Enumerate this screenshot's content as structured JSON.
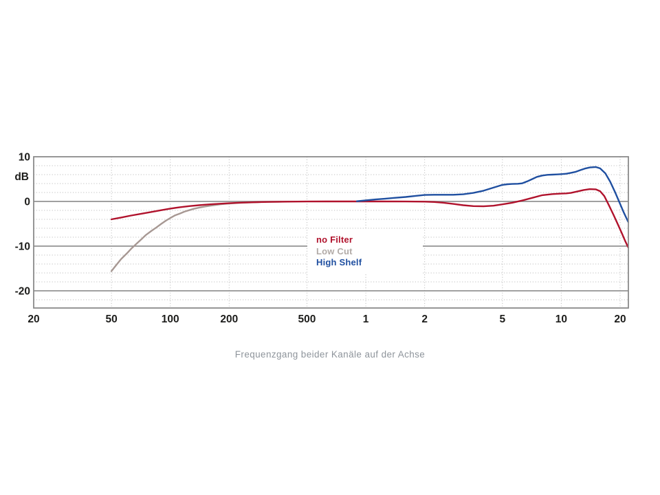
{
  "caption": "Frequenzgang beider Kanäle auf der Achse",
  "legend": {
    "position": "inside-center",
    "items": [
      {
        "label": "no Filter",
        "color": "#b0122c"
      },
      {
        "label": "Low Cut",
        "color": "#b2aba7"
      },
      {
        "label": "High Shelf",
        "color": "#1f4fa0"
      }
    ]
  },
  "chart_data": {
    "type": "line",
    "title": "",
    "xlabel": "",
    "ylabel": "dB",
    "xscale": "log",
    "xlim_hz": [
      20,
      22000
    ],
    "ylim_db": [
      -23.8,
      10
    ],
    "grid": "horizontal solid every 10 dB, dotted minors every 2 dB, dotted verticals at labeled frequencies",
    "x_ticks": [
      {
        "label": "20",
        "hz": 20
      },
      {
        "label": "50",
        "hz": 50
      },
      {
        "label": "100",
        "hz": 100
      },
      {
        "label": "200",
        "hz": 200
      },
      {
        "label": "500",
        "hz": 500
      },
      {
        "label": "1",
        "hz": 1000
      },
      {
        "label": "2",
        "hz": 2000
      },
      {
        "label": "5",
        "hz": 5000
      },
      {
        "label": "10",
        "hz": 10000
      },
      {
        "label": "20",
        "hz": 20000
      }
    ],
    "y_ticks": [
      {
        "label": "10",
        "db": 10
      },
      {
        "label": "0",
        "db": 0
      },
      {
        "label": "-10",
        "db": -10
      },
      {
        "label": "-20",
        "db": -20
      }
    ],
    "series": [
      {
        "name": "Low Cut",
        "color": "#a79893",
        "points": [
          [
            50,
            -15.6
          ],
          [
            53,
            -14.2
          ],
          [
            56,
            -12.9
          ],
          [
            60,
            -11.6
          ],
          [
            63,
            -10.6
          ],
          [
            67,
            -9.5
          ],
          [
            71,
            -8.5
          ],
          [
            75,
            -7.5
          ],
          [
            80,
            -6.6
          ],
          [
            85,
            -5.8
          ],
          [
            90,
            -5.0
          ],
          [
            95,
            -4.3
          ],
          [
            100,
            -3.7
          ],
          [
            106,
            -3.1
          ],
          [
            112,
            -2.7
          ],
          [
            118,
            -2.3
          ],
          [
            125,
            -1.95
          ],
          [
            132,
            -1.65
          ],
          [
            140,
            -1.4
          ],
          [
            150,
            -1.15
          ],
          [
            160,
            -0.95
          ],
          [
            170,
            -0.8
          ],
          [
            180,
            -0.65
          ],
          [
            190,
            -0.55
          ],
          [
            200,
            -0.47
          ],
          [
            224,
            -0.33
          ],
          [
            250,
            -0.24
          ],
          [
            280,
            -0.16
          ],
          [
            315,
            -0.1
          ],
          [
            355,
            -0.06
          ],
          [
            400,
            -0.03
          ]
        ]
      },
      {
        "name": "no Filter",
        "color": "#b0122c",
        "points": [
          [
            50,
            -4.0
          ],
          [
            56,
            -3.6
          ],
          [
            63,
            -3.15
          ],
          [
            71,
            -2.75
          ],
          [
            80,
            -2.35
          ],
          [
            90,
            -1.95
          ],
          [
            100,
            -1.6
          ],
          [
            112,
            -1.3
          ],
          [
            125,
            -1.05
          ],
          [
            140,
            -0.85
          ],
          [
            160,
            -0.65
          ],
          [
            180,
            -0.5
          ],
          [
            200,
            -0.4
          ],
          [
            224,
            -0.3
          ],
          [
            250,
            -0.22
          ],
          [
            280,
            -0.16
          ],
          [
            315,
            -0.11
          ],
          [
            400,
            -0.05
          ],
          [
            500,
            -0.02
          ],
          [
            630,
            0
          ],
          [
            800,
            0
          ],
          [
            1000,
            0
          ],
          [
            1250,
            0
          ],
          [
            1600,
            -0.02
          ],
          [
            2000,
            -0.05
          ],
          [
            2240,
            -0.12
          ],
          [
            2500,
            -0.3
          ],
          [
            2800,
            -0.55
          ],
          [
            3150,
            -0.85
          ],
          [
            3550,
            -1.05
          ],
          [
            4000,
            -1.1
          ],
          [
            4500,
            -0.95
          ],
          [
            5000,
            -0.65
          ],
          [
            5600,
            -0.3
          ],
          [
            6300,
            0.2
          ],
          [
            7100,
            0.8
          ],
          [
            8000,
            1.4
          ],
          [
            9000,
            1.65
          ],
          [
            10000,
            1.75
          ],
          [
            10600,
            1.8
          ],
          [
            11200,
            1.9
          ],
          [
            12000,
            2.2
          ],
          [
            13000,
            2.55
          ],
          [
            14000,
            2.75
          ],
          [
            15000,
            2.7
          ],
          [
            15800,
            2.3
          ],
          [
            16600,
            1.2
          ],
          [
            17500,
            -0.8
          ],
          [
            18500,
            -3.0
          ],
          [
            19500,
            -5.2
          ],
          [
            20500,
            -7.3
          ],
          [
            21200,
            -8.8
          ],
          [
            22000,
            -10.3
          ]
        ]
      },
      {
        "name": "High Shelf",
        "color": "#1f4fa0",
        "points": [
          [
            900,
            0.05
          ],
          [
            1000,
            0.25
          ],
          [
            1120,
            0.45
          ],
          [
            1250,
            0.6
          ],
          [
            1400,
            0.8
          ],
          [
            1600,
            1.0
          ],
          [
            1800,
            1.25
          ],
          [
            2000,
            1.45
          ],
          [
            2240,
            1.5
          ],
          [
            2500,
            1.5
          ],
          [
            2800,
            1.5
          ],
          [
            3150,
            1.6
          ],
          [
            3550,
            1.9
          ],
          [
            4000,
            2.4
          ],
          [
            4500,
            3.1
          ],
          [
            5000,
            3.7
          ],
          [
            5300,
            3.85
          ],
          [
            5600,
            3.9
          ],
          [
            6000,
            3.95
          ],
          [
            6300,
            4.05
          ],
          [
            6700,
            4.5
          ],
          [
            7100,
            5.0
          ],
          [
            7500,
            5.5
          ],
          [
            8000,
            5.8
          ],
          [
            8500,
            5.95
          ],
          [
            9000,
            6.0
          ],
          [
            9500,
            6.05
          ],
          [
            10000,
            6.1
          ],
          [
            10600,
            6.2
          ],
          [
            11200,
            6.4
          ],
          [
            11800,
            6.6
          ],
          [
            12500,
            7.0
          ],
          [
            13200,
            7.35
          ],
          [
            14000,
            7.6
          ],
          [
            15000,
            7.7
          ],
          [
            15800,
            7.4
          ],
          [
            16800,
            6.3
          ],
          [
            17800,
            4.4
          ],
          [
            18800,
            2.2
          ],
          [
            19800,
            -0.1
          ],
          [
            20900,
            -2.5
          ],
          [
            22000,
            -4.6
          ]
        ]
      }
    ]
  }
}
